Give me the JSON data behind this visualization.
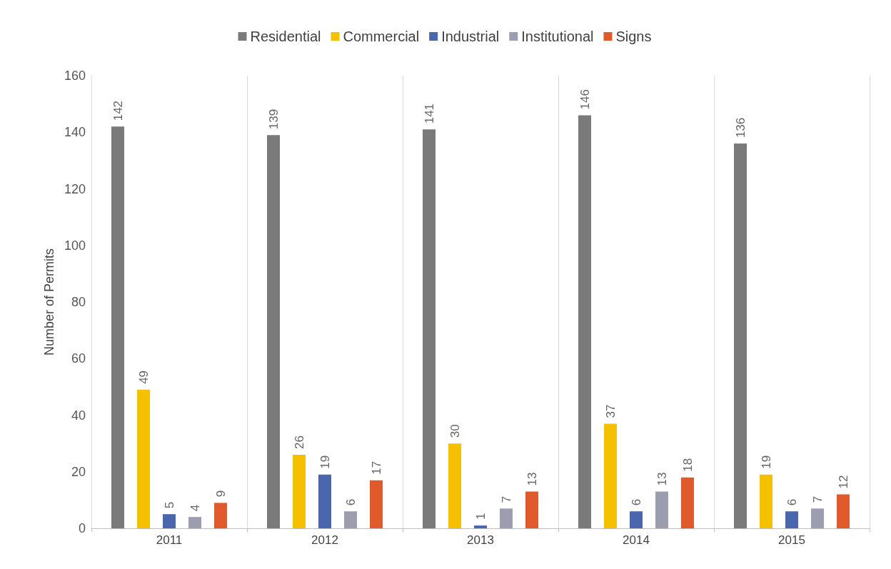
{
  "chart_data": {
    "type": "bar",
    "ylabel": "Number of Permits",
    "categories": [
      "2011",
      "2012",
      "2013",
      "2014",
      "2015"
    ],
    "series": [
      {
        "name": "Residential",
        "color": "#7a7a7a",
        "values": [
          142,
          139,
          141,
          146,
          136
        ]
      },
      {
        "name": "Commercial",
        "color": "#f5c000",
        "values": [
          49,
          26,
          30,
          37,
          19
        ]
      },
      {
        "name": "Industrial",
        "color": "#4a67ae",
        "values": [
          5,
          19,
          1,
          6,
          6
        ]
      },
      {
        "name": "Institutional",
        "color": "#9d9db0",
        "values": [
          4,
          6,
          7,
          13,
          7
        ]
      },
      {
        "name": "Signs",
        "color": "#e05a2b",
        "values": [
          9,
          17,
          13,
          18,
          12
        ]
      }
    ],
    "ylim": [
      0,
      160
    ],
    "yticks": [
      0,
      20,
      40,
      60,
      80,
      100,
      120,
      140,
      160
    ],
    "grid": "x",
    "legend": "top",
    "data_labels": true
  }
}
